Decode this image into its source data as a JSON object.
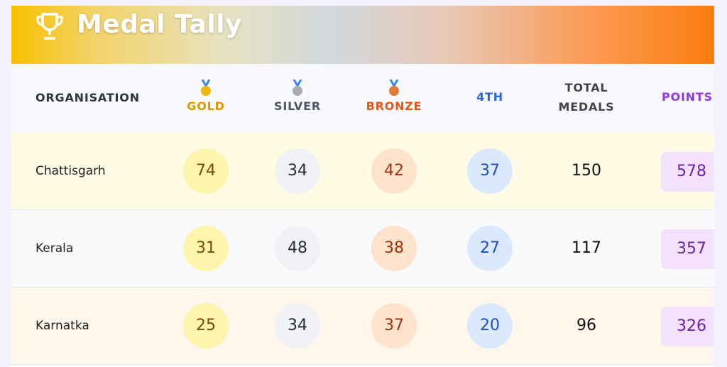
{
  "header": {
    "title": "Medal Tally"
  },
  "table": {
    "columns": [
      "ORGANISATION",
      "GOLD",
      "SILVER",
      "BRONZE",
      "4TH",
      "TOTAL MEDALS",
      "POINTS"
    ],
    "rows": [
      [
        "Chattisgarh",
        74,
        34,
        42,
        37,
        150,
        578
      ],
      [
        "Kerala",
        31,
        48,
        38,
        27,
        117,
        357
      ],
      [
        "Karnatka",
        25,
        34,
        37,
        20,
        96,
        326
      ]
    ]
  }
}
